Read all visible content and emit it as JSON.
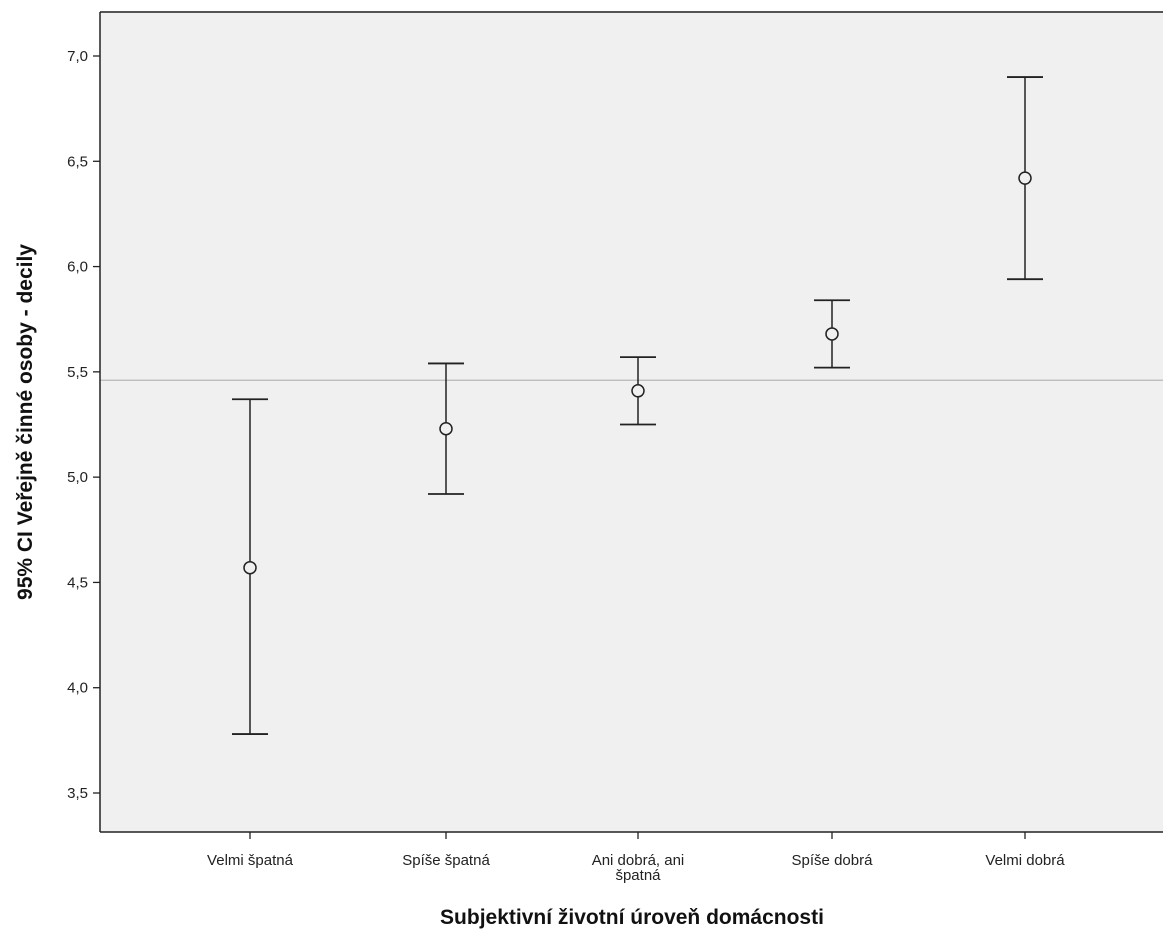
{
  "chart_data": {
    "type": "errorbar",
    "title": "",
    "xlabel": "Subjektivní životní úroveň domácnosti",
    "ylabel": "95% CI Veřejně činné osoby - decily",
    "ylim": [
      3.3,
      7.2
    ],
    "yticks": [
      "3,5",
      "4,0",
      "4,5",
      "5,0",
      "5,5",
      "6,0",
      "6,5",
      "7,0"
    ],
    "ytick_values": [
      3.5,
      4.0,
      4.5,
      5.0,
      5.5,
      6.0,
      6.5,
      7.0
    ],
    "grid": false,
    "reference_line": 5.46,
    "categories": [
      {
        "label": [
          "Velmi špatná"
        ],
        "mean": 4.57,
        "lower": 3.78,
        "upper": 5.37
      },
      {
        "label": [
          "Spíše špatná"
        ],
        "mean": 5.23,
        "lower": 4.92,
        "upper": 5.54
      },
      {
        "label": [
          "Ani dobrá, ani",
          "špatná"
        ],
        "mean": 5.41,
        "lower": 5.25,
        "upper": 5.57
      },
      {
        "label": [
          "Spíše dobrá"
        ],
        "mean": 5.68,
        "lower": 5.52,
        "upper": 5.84
      },
      {
        "label": [
          "Velmi dobrá"
        ],
        "mean": 6.42,
        "lower": 5.94,
        "upper": 6.9
      }
    ],
    "colors": {
      "plot_background": "#f0f0f0",
      "marks": "#222222",
      "reference_line": "#b8b8b8"
    }
  }
}
